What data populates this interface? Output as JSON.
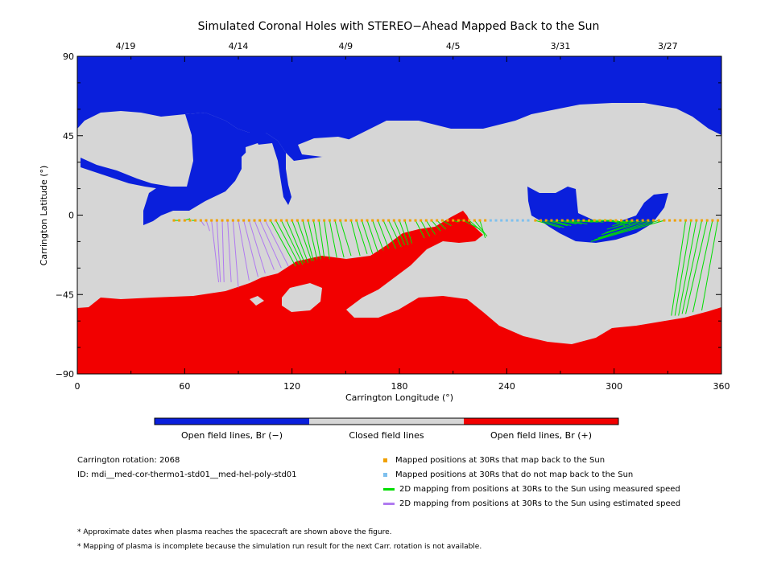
{
  "chart_data": {
    "type": "map",
    "title": "Simulated Coronal Holes with STEREO−Ahead Mapped Back to the Sun",
    "xlabel": "Carrington Longitude (°)",
    "ylabel": "Carrington Latitude (°)",
    "xlim": [
      0,
      360
    ],
    "ylim": [
      -90,
      90
    ],
    "x_ticks": [
      "0",
      "60",
      "120",
      "180",
      "240",
      "300",
      "360"
    ],
    "y_ticks": [
      "90",
      "45",
      "0",
      "−45",
      "−90"
    ],
    "date_ticks": [
      {
        "lon": 27,
        "label": "4/19"
      },
      {
        "lon": 90,
        "label": "4/14"
      },
      {
        "lon": 150,
        "label": "4/9"
      },
      {
        "lon": 210,
        "label": "4/5"
      },
      {
        "lon": 270,
        "label": "3/31"
      },
      {
        "lon": 330,
        "label": "3/27"
      }
    ],
    "colorbar": [
      {
        "label": "Open field lines, Br (−)",
        "color": "#0a1fdc"
      },
      {
        "label": "Closed field lines",
        "color": "#d6d6d6"
      },
      {
        "label": "Open field lines, Br (+)",
        "color": "#f20000"
      }
    ],
    "mapped_points": {
      "lat": -3,
      "back_to_sun_lon": [
        54,
        57,
        60,
        63,
        66,
        69,
        72,
        75,
        78,
        81,
        84,
        87,
        90,
        93,
        96,
        99,
        102,
        105,
        108,
        111,
        114,
        117,
        120,
        123,
        126,
        129,
        132,
        135,
        138,
        141,
        144,
        147,
        150,
        153,
        156,
        159,
        162,
        165,
        168,
        171,
        174,
        177,
        180,
        183,
        186,
        189,
        192,
        195,
        198,
        201,
        204,
        207,
        210,
        213,
        216,
        219,
        222,
        225,
        228,
        256,
        259,
        262,
        265,
        268,
        271,
        274,
        277,
        280,
        283,
        286,
        289,
        292,
        295,
        298,
        301,
        304,
        307,
        310,
        313,
        316,
        319,
        322,
        325,
        328,
        331,
        334,
        337,
        340,
        343,
        346,
        349,
        352,
        355,
        358
      ],
      "not_back_to_sun_lon": [
        231,
        234,
        237,
        240,
        243,
        246,
        249,
        252
      ]
    },
    "measured_speed_mapping": [
      {
        "lon": 54,
        "sun_lon": 57,
        "sun_lat": -3
      },
      {
        "lon": 60,
        "sun_lon": 63,
        "sun_lat": -2
      },
      {
        "lon": 66,
        "sun_lon": 64,
        "sun_lat": -3
      },
      {
        "lon": 108,
        "sun_lon": 122,
        "sun_lat": -29
      },
      {
        "lon": 111,
        "sun_lon": 124,
        "sun_lat": -28
      },
      {
        "lon": 114,
        "sun_lon": 126,
        "sun_lat": -28
      },
      {
        "lon": 117,
        "sun_lon": 127,
        "sun_lat": -27
      },
      {
        "lon": 120,
        "sun_lon": 129,
        "sun_lat": -27
      },
      {
        "lon": 123,
        "sun_lon": 131,
        "sun_lat": -26
      },
      {
        "lon": 126,
        "sun_lon": 132,
        "sun_lat": -26
      },
      {
        "lon": 129,
        "sun_lon": 134,
        "sun_lat": -25
      },
      {
        "lon": 132,
        "sun_lon": 136,
        "sun_lat": -25
      },
      {
        "lon": 135,
        "sun_lon": 138,
        "sun_lat": -24
      },
      {
        "lon": 138,
        "sun_lon": 141,
        "sun_lat": -25
      },
      {
        "lon": 141,
        "sun_lon": 145,
        "sun_lat": -24
      },
      {
        "lon": 144,
        "sun_lon": 149,
        "sun_lat": -24
      },
      {
        "lon": 147,
        "sun_lon": 153,
        "sun_lat": -23
      },
      {
        "lon": 153,
        "sun_lon": 158,
        "sun_lat": -23
      },
      {
        "lon": 156,
        "sun_lon": 162,
        "sun_lat": -22
      },
      {
        "lon": 159,
        "sun_lon": 165,
        "sun_lat": -22
      },
      {
        "lon": 162,
        "sun_lon": 168,
        "sun_lat": -21
      },
      {
        "lon": 165,
        "sun_lon": 171,
        "sun_lat": -20
      },
      {
        "lon": 168,
        "sun_lon": 174,
        "sun_lat": -19
      },
      {
        "lon": 171,
        "sun_lon": 178,
        "sun_lat": -19
      },
      {
        "lon": 174,
        "sun_lon": 181,
        "sun_lat": -18
      },
      {
        "lon": 177,
        "sun_lon": 183,
        "sun_lat": -17
      },
      {
        "lon": 180,
        "sun_lon": 185,
        "sun_lat": -17
      },
      {
        "lon": 183,
        "sun_lon": 187,
        "sun_lat": -16
      },
      {
        "lon": 189,
        "sun_lon": 194,
        "sun_lat": -13
      },
      {
        "lon": 192,
        "sun_lon": 197,
        "sun_lat": -12
      },
      {
        "lon": 195,
        "sun_lon": 200,
        "sun_lat": -11
      },
      {
        "lon": 198,
        "sun_lon": 203,
        "sun_lat": -9
      },
      {
        "lon": 201,
        "sun_lon": 206,
        "sun_lat": -8
      },
      {
        "lon": 204,
        "sun_lon": 209,
        "sun_lat": -6
      },
      {
        "lon": 210,
        "sun_lon": 213,
        "sun_lat": -4
      },
      {
        "lon": 213,
        "sun_lon": 215,
        "sun_lat": -3
      },
      {
        "lon": 216,
        "sun_lon": 225,
        "sun_lat": -8
      },
      {
        "lon": 219,
        "sun_lon": 227,
        "sun_lat": -10
      },
      {
        "lon": 222,
        "sun_lon": 229,
        "sun_lat": -12
      },
      {
        "lon": 225,
        "sun_lon": 228,
        "sun_lat": -13
      },
      {
        "lon": 256,
        "sun_lon": 270,
        "sun_lat": -7
      },
      {
        "lon": 259,
        "sun_lon": 272,
        "sun_lat": -7
      },
      {
        "lon": 262,
        "sun_lon": 274,
        "sun_lat": -6
      },
      {
        "lon": 265,
        "sun_lon": 276,
        "sun_lat": -6
      },
      {
        "lon": 268,
        "sun_lon": 279,
        "sun_lat": -5
      },
      {
        "lon": 271,
        "sun_lon": 282,
        "sun_lat": -5
      },
      {
        "lon": 274,
        "sun_lon": 285,
        "sun_lat": -5
      },
      {
        "lon": 277,
        "sun_lon": 288,
        "sun_lat": -4
      },
      {
        "lon": 280,
        "sun_lon": 291,
        "sun_lat": -4
      },
      {
        "lon": 283,
        "sun_lon": 294,
        "sun_lat": -4
      },
      {
        "lon": 286,
        "sun_lon": 297,
        "sun_lat": -3
      },
      {
        "lon": 289,
        "sun_lon": 300,
        "sun_lat": -3
      },
      {
        "lon": 292,
        "sun_lon": 303,
        "sun_lat": -4
      },
      {
        "lon": 295,
        "sun_lon": 306,
        "sun_lat": -4
      },
      {
        "lon": 298,
        "sun_lon": 306,
        "sun_lat": -6
      },
      {
        "lon": 301,
        "sun_lon": 307,
        "sun_lat": -5
      },
      {
        "lon": 304,
        "sun_lon": 309,
        "sun_lat": -5
      },
      {
        "lon": 307,
        "sun_lon": 310,
        "sun_lat": -4
      },
      {
        "lon": 310,
        "sun_lon": 299,
        "sun_lat": -6
      },
      {
        "lon": 313,
        "sun_lon": 296,
        "sun_lat": -8
      },
      {
        "lon": 316,
        "sun_lon": 295,
        "sun_lat": -10
      },
      {
        "lon": 319,
        "sun_lon": 293,
        "sun_lat": -11
      },
      {
        "lon": 322,
        "sun_lon": 291,
        "sun_lat": -13
      },
      {
        "lon": 325,
        "sun_lon": 289,
        "sun_lat": -14
      },
      {
        "lon": 328,
        "sun_lon": 287,
        "sun_lat": -15
      },
      {
        "lon": 340,
        "sun_lon": 332,
        "sun_lat": -57
      },
      {
        "lon": 343,
        "sun_lon": 334,
        "sun_lat": -57
      },
      {
        "lon": 346,
        "sun_lon": 336,
        "sun_lat": -57
      },
      {
        "lon": 349,
        "sun_lon": 338,
        "sun_lat": -56
      },
      {
        "lon": 352,
        "sun_lon": 340,
        "sun_lat": -56
      },
      {
        "lon": 355,
        "sun_lon": 344,
        "sun_lat": -55
      },
      {
        "lon": 358,
        "sun_lon": 349,
        "sun_lat": -54
      }
    ],
    "estimated_speed_mapping": [
      {
        "lon": 69,
        "sun_lon": 71,
        "sun_lat": -6
      },
      {
        "lon": 72,
        "sun_lon": 74,
        "sun_lat": -9
      },
      {
        "lon": 75,
        "sun_lon": 79,
        "sun_lat": -38
      },
      {
        "lon": 78,
        "sun_lon": 80,
        "sun_lat": -38
      },
      {
        "lon": 81,
        "sun_lon": 82,
        "sun_lat": -38
      },
      {
        "lon": 84,
        "sun_lon": 86,
        "sun_lat": -38
      },
      {
        "lon": 87,
        "sun_lon": 90,
        "sun_lat": -41
      },
      {
        "lon": 90,
        "sun_lon": 96,
        "sun_lat": -37
      },
      {
        "lon": 93,
        "sun_lon": 101,
        "sun_lat": -35
      },
      {
        "lon": 96,
        "sun_lon": 105,
        "sun_lat": -33
      },
      {
        "lon": 99,
        "sun_lon": 110,
        "sun_lat": -31
      },
      {
        "lon": 102,
        "sun_lon": 114,
        "sun_lat": -30
      },
      {
        "lon": 105,
        "sun_lon": 118,
        "sun_lat": -29
      }
    ]
  },
  "info": {
    "rotation": "Carrington rotation: 2068",
    "id": "ID: mdi__med-cor-thermo1-std01__med-hel-poly-std01"
  },
  "legend": [
    {
      "label": "Mapped positions at 30Rs that map back to the Sun",
      "color": "#f0a000",
      "kind": "dot"
    },
    {
      "label": "Mapped positions at 30Rs that do not map back to the Sun",
      "color": "#7ec0ee",
      "kind": "dot"
    },
    {
      "label": "2D mapping from positions at 30Rs to the Sun using measured speed",
      "color": "#00dd00",
      "kind": "line"
    },
    {
      "label": "2D mapping from positions at 30Rs to the Sun using estimated speed",
      "color": "#b07af0",
      "kind": "line"
    }
  ],
  "notes": [
    "* Approximate dates when plasma reaches the spacecraft are shown above the figure.",
    "* Mapping of plasma is incomplete because the simulation run result for the next Carr. rotation is not available."
  ]
}
